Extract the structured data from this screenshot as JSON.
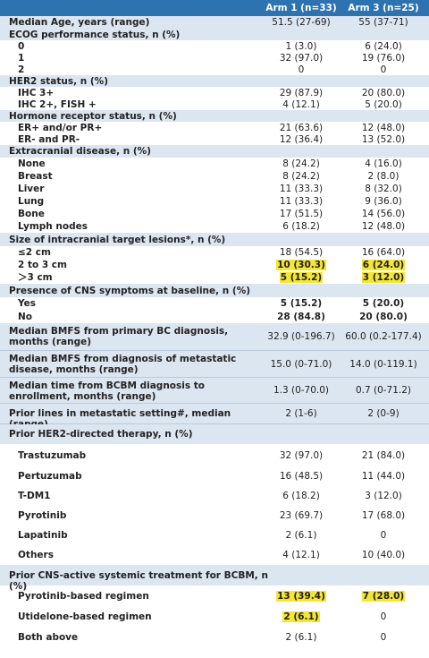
{
  "header": {
    "arm1": "Arm 1 (n=33)",
    "arm3": "Arm 3  (n=25)"
  },
  "rows": [
    {
      "label": "Median Age, years (range)",
      "a": "51.5 (27-69)",
      "b": "55 (37-71)"
    },
    {
      "label": "ECOG performance status, n (%)",
      "a": "",
      "b": ""
    },
    {
      "label": "0",
      "a": "1 (3.0)",
      "b": "6 (24.0)"
    },
    {
      "label": "1",
      "a": "32 (97.0)",
      "b": "19 (76.0)"
    },
    {
      "label": "2",
      "a": "0",
      "b": "0"
    },
    {
      "label": "HER2 status, n (%)",
      "a": "",
      "b": ""
    },
    {
      "label": "IHC 3+",
      "a": "29 (87.9)",
      "b": "20 (80.0)"
    },
    {
      "label": "IHC 2+,  FISH +",
      "a": "4 (12.1)",
      "b": "5 (20.0)"
    },
    {
      "label": "Hormone receptor status, n (%)",
      "a": "",
      "b": ""
    },
    {
      "label": "ER+ and/or PR+",
      "a": "21 (63.6)",
      "b": "12 (48.0)"
    },
    {
      "label": "ER- and PR-",
      "a": "12 (36.4)",
      "b": "13 (52.0)"
    },
    {
      "label": "Extracranial disease, n (%)",
      "a": "",
      "b": ""
    },
    {
      "label": "None",
      "a": "8 (24.2)",
      "b": "4 (16.0)"
    },
    {
      "label": "Breast",
      "a": "8 (24.2)",
      "b": "2 (8.0)"
    },
    {
      "label": "Liver",
      "a": "11 (33.3)",
      "b": "8 (32.0)"
    },
    {
      "label": "Lung",
      "a": "11 (33.3)",
      "b": "9 (36.0)"
    },
    {
      "label": "Bone",
      "a": "17 (51.5)",
      "b": "14 (56.0)"
    },
    {
      "label": "Lymph nodes",
      "a": "6 (18.2)",
      "b": "12 (48.0)"
    },
    {
      "label": "Size of intracranial target lesions*, n (%)",
      "a": "",
      "b": ""
    },
    {
      "label": "≤2 cm",
      "a": "18 (54.5)",
      "b": "16 (64.0)"
    },
    {
      "label": "2 to 3 cm",
      "a": "10 (30.3)",
      "b": "6 (24.0)"
    },
    {
      "label": "＞3 cm",
      "a": "5 (15.2)",
      "b": "3 (12.0)"
    },
    {
      "label": "Presence of CNS symptoms at baseline, n (%)",
      "a": "",
      "b": ""
    },
    {
      "label": "Yes",
      "a": "5 (15.2)",
      "b": "5 (20.0)"
    },
    {
      "label": "No",
      "a": "28 (84.8)",
      "b": "20 (80.0)"
    },
    {
      "label": "Median  BMFS  from  primary  BC  diagnosis,  months (range)",
      "a": "32.9 (0-196.7)",
      "b": "60.0 (0.2-177.4)"
    },
    {
      "label": "Median  BMFS  from  diagnosis  of  metastatic  disease, months (range)",
      "a": "15.0 (0-71.0)",
      "b": "14.0 (0-119.1)"
    },
    {
      "label": "Median  time  from  BCBM  diagnosis  to  enrollment, months (range)",
      "a": "1.3 (0-70.0)",
      "b": "0.7 (0-71.2)"
    },
    {
      "label": "Prior lines in metastatic setting#, median (range)",
      "a": "2 (1-6)",
      "b": "2 (0-9)"
    },
    {
      "label": "Prior HER2-directed therapy, n (%)",
      "a": "",
      "b": ""
    },
    {
      "label": "Trastuzumab",
      "a": "32 (97.0)",
      "b": "21 (84.0)"
    },
    {
      "label": "Pertuzumab",
      "a": "16 (48.5)",
      "b": "11 (44.0)"
    },
    {
      "label": "T-DM1",
      "a": "6 (18.2)",
      "b": "3 (12.0)"
    },
    {
      "label": "Pyrotinib",
      "a": "23 (69.7)",
      "b": "17 (68.0)"
    },
    {
      "label": "Lapatinib",
      "a": "2 (6.1)",
      "b": "0"
    },
    {
      "label": "Others",
      "a": "4 (12.1)",
      "b": "10 (40.0)"
    },
    {
      "label": "Prior CNS-active systemic treatment for BCBM, n (%)",
      "a": "",
      "b": ""
    },
    {
      "label": "Pyrotinib-based regimen",
      "a": "13 (39.4)",
      "b": "7 (28.0)"
    },
    {
      "label": "Utidelone-based regimen",
      "a": "2 (6.1)",
      "b": "0"
    },
    {
      "label": "Both above",
      "a": "2 (6.1)",
      "b": "0"
    }
  ]
}
